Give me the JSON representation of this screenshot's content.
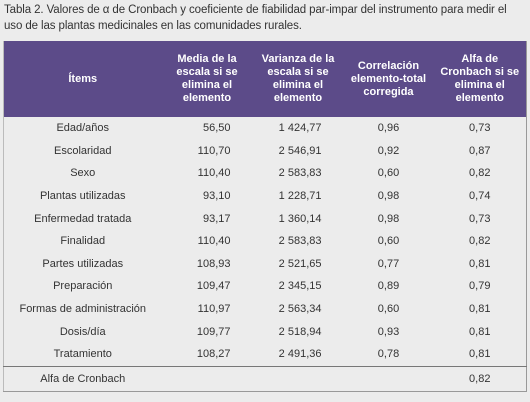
{
  "caption": "Tabla 2. Valores de α de Cronbach y coeficiente de fiabilidad par-impar del instrumento para medir el uso de las plantas medicinales en las comunidades rurales.",
  "table": {
    "header": [
      "Ítems",
      "Media de la escala si se elimina el elemento",
      "Varianza de la escala si se elimina el elemento",
      "Correlación elemento-total corregida",
      "Alfa de Cronbach si se elimina el elemento"
    ],
    "rows": [
      [
        "Edad/años",
        "56,50",
        "1 424,77",
        "0,96",
        "0,73"
      ],
      [
        "Escolaridad",
        "110,70",
        "2 546,91",
        "0,92",
        "0,87"
      ],
      [
        "Sexo",
        "110,40",
        "2 583,83",
        "0,60",
        "0,82"
      ],
      [
        "Plantas utilizadas",
        "93,10",
        "1 228,71",
        "0,98",
        "0,74"
      ],
      [
        "Enfermedad tratada",
        "93,17",
        "1 360,14",
        "0,98",
        "0,73"
      ],
      [
        "Finalidad",
        "110,40",
        "2 583,83",
        "0,60",
        "0,82"
      ],
      [
        "Partes utilizadas",
        "108,93",
        "2 521,65",
        "0,77",
        "0,81"
      ],
      [
        "Preparación",
        "109,47",
        "2 345,15",
        "0,89",
        "0,79"
      ],
      [
        "Formas de administración",
        "110,97",
        "2 563,34",
        "0,60",
        "0,81"
      ],
      [
        "Dosis/día",
        "109,77",
        "2 518,94",
        "0,93",
        "0,81"
      ],
      [
        "Tratamiento",
        "108,27",
        "2 491,36",
        "0,78",
        "0,81"
      ]
    ],
    "footer": [
      "Alfa de Cronbach",
      "0,82"
    ]
  }
}
